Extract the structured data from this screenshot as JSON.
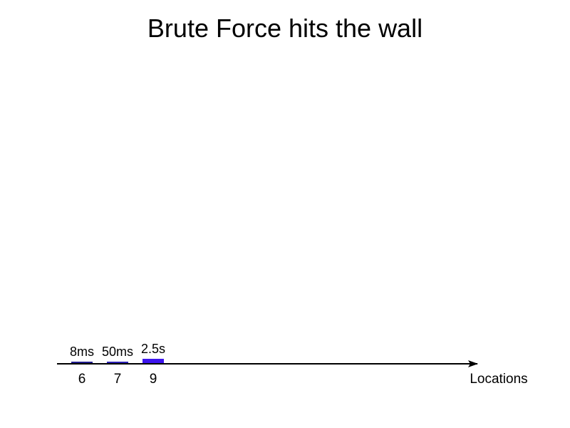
{
  "title": "Brute Force hits the wall",
  "chart_data": {
    "type": "bar",
    "title": "Brute Force hits the wall",
    "xlabel": "Locations",
    "ylabel": "",
    "categories": [
      "6",
      "7",
      "9"
    ],
    "values": [
      0.008,
      0.05,
      2.5
    ],
    "unit": "s",
    "data_labels": [
      "8ms",
      "50ms",
      "2.5s"
    ],
    "bar_colors": [
      "#1f1a8c",
      "#2a1fb4",
      "#3d14ee"
    ],
    "axis_color": "#000000",
    "grid": false,
    "legend": "none"
  }
}
